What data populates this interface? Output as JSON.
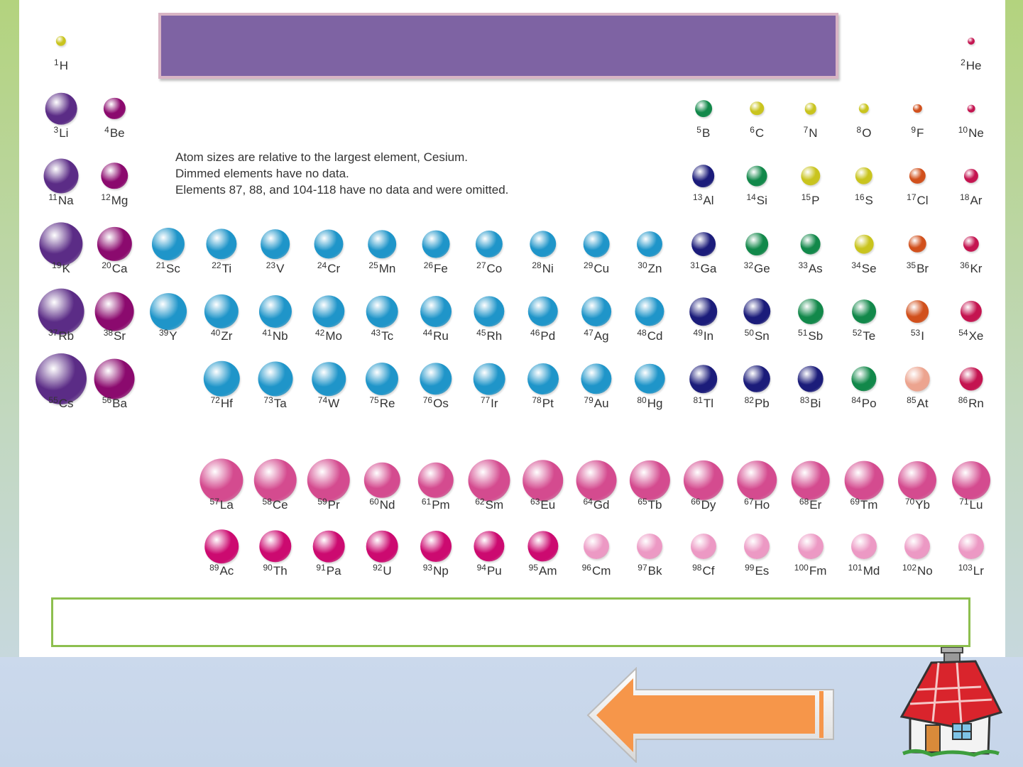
{
  "title": "",
  "answer": "",
  "notes": [
    "Atom sizes are relative to the largest element, Cesium.",
    "Dimmed elements have no data.",
    "Elements 87, 88, and 104-118 have no data and were omitted."
  ],
  "colors": {
    "alkali": "#5b2c86",
    "alkaline": "#8b0a6e",
    "transition": "#1f95c9",
    "poor": "#1b1c7a",
    "metalloid": "#12884a",
    "nonmetal": "#c9c41e",
    "halogen": "#d1501c",
    "noble": "#c41450",
    "astatine": "#eca48f",
    "lanthanide": "#d44b8f",
    "actinide": "#cc0a70",
    "dimmed": "#ec99c4",
    "title_box": "#7e63a3",
    "answer_border": "#8dbf4f",
    "arrow": "#f6964a"
  },
  "elements": [
    {
      "n": "1",
      "s": "H",
      "col": 1,
      "row": 1,
      "c": "nonmetal",
      "r": 0.2
    },
    {
      "n": "2",
      "s": "He",
      "col": 18,
      "row": 1,
      "c": "noble",
      "r": 0.13
    },
    {
      "n": "3",
      "s": "Li",
      "col": 1,
      "row": 2,
      "c": "alkali",
      "r": 0.62
    },
    {
      "n": "4",
      "s": "Be",
      "col": 2,
      "row": 2,
      "c": "alkaline",
      "r": 0.42
    },
    {
      "n": "5",
      "s": "B",
      "col": 13,
      "row": 2,
      "c": "metalloid",
      "r": 0.33
    },
    {
      "n": "6",
      "s": "C",
      "col": 14,
      "row": 2,
      "c": "nonmetal",
      "r": 0.27
    },
    {
      "n": "7",
      "s": "N",
      "col": 15,
      "row": 2,
      "c": "nonmetal",
      "r": 0.23
    },
    {
      "n": "8",
      "s": "O",
      "col": 16,
      "row": 2,
      "c": "nonmetal",
      "r": 0.2
    },
    {
      "n": "9",
      "s": "F",
      "col": 17,
      "row": 2,
      "c": "halogen",
      "r": 0.17
    },
    {
      "n": "10",
      "s": "Ne",
      "col": 18,
      "row": 2,
      "c": "noble",
      "r": 0.15
    },
    {
      "n": "11",
      "s": "Na",
      "col": 1,
      "row": 3,
      "c": "alkali",
      "r": 0.68
    },
    {
      "n": "12",
      "s": "Mg",
      "col": 2,
      "row": 3,
      "c": "alkaline",
      "r": 0.52
    },
    {
      "n": "13",
      "s": "Al",
      "col": 13,
      "row": 3,
      "c": "poor",
      "r": 0.44
    },
    {
      "n": "14",
      "s": "Si",
      "col": 14,
      "row": 3,
      "c": "metalloid",
      "r": 0.4
    },
    {
      "n": "15",
      "s": "P",
      "col": 15,
      "row": 3,
      "c": "nonmetal",
      "r": 0.38
    },
    {
      "n": "16",
      "s": "S",
      "col": 16,
      "row": 3,
      "c": "nonmetal",
      "r": 0.34
    },
    {
      "n": "17",
      "s": "Cl",
      "col": 17,
      "row": 3,
      "c": "halogen",
      "r": 0.31
    },
    {
      "n": "18",
      "s": "Ar",
      "col": 18,
      "row": 3,
      "c": "noble",
      "r": 0.28
    },
    {
      "n": "19",
      "s": "K",
      "col": 1,
      "row": 4,
      "c": "alkali",
      "r": 0.85
    },
    {
      "n": "20",
      "s": "Ca",
      "col": 2,
      "row": 4,
      "c": "alkaline",
      "r": 0.67
    },
    {
      "n": "21",
      "s": "Sc",
      "col": 3,
      "row": 4,
      "c": "transition",
      "r": 0.64
    },
    {
      "n": "22",
      "s": "Ti",
      "col": 4,
      "row": 4,
      "c": "transition",
      "r": 0.6
    },
    {
      "n": "23",
      "s": "V",
      "col": 5,
      "row": 4,
      "c": "transition",
      "r": 0.58
    },
    {
      "n": "24",
      "s": "Cr",
      "col": 6,
      "row": 4,
      "c": "transition",
      "r": 0.57
    },
    {
      "n": "25",
      "s": "Mn",
      "col": 7,
      "row": 4,
      "c": "transition",
      "r": 0.55
    },
    {
      "n": "26",
      "s": "Fe",
      "col": 8,
      "row": 4,
      "c": "transition",
      "r": 0.54
    },
    {
      "n": "27",
      "s": "Co",
      "col": 9,
      "row": 4,
      "c": "transition",
      "r": 0.53
    },
    {
      "n": "28",
      "s": "Ni",
      "col": 10,
      "row": 4,
      "c": "transition",
      "r": 0.52
    },
    {
      "n": "29",
      "s": "Cu",
      "col": 11,
      "row": 4,
      "c": "transition",
      "r": 0.51
    },
    {
      "n": "30",
      "s": "Zn",
      "col": 12,
      "row": 4,
      "c": "transition",
      "r": 0.5
    },
    {
      "n": "31",
      "s": "Ga",
      "col": 13,
      "row": 4,
      "c": "poor",
      "r": 0.47
    },
    {
      "n": "32",
      "s": "Ge",
      "col": 14,
      "row": 4,
      "c": "metalloid",
      "r": 0.44
    },
    {
      "n": "33",
      "s": "As",
      "col": 15,
      "row": 4,
      "c": "metalloid",
      "r": 0.4
    },
    {
      "n": "34",
      "s": "Se",
      "col": 16,
      "row": 4,
      "c": "nonmetal",
      "r": 0.37
    },
    {
      "n": "35",
      "s": "Br",
      "col": 17,
      "row": 4,
      "c": "halogen",
      "r": 0.34
    },
    {
      "n": "36",
      "s": "Kr",
      "col": 18,
      "row": 4,
      "c": "noble",
      "r": 0.31
    },
    {
      "n": "37",
      "s": "Rb",
      "col": 1,
      "row": 5,
      "c": "alkali",
      "r": 0.9
    },
    {
      "n": "38",
      "s": "Sr",
      "col": 2,
      "row": 5,
      "c": "alkaline",
      "r": 0.76
    },
    {
      "n": "39",
      "s": "Y",
      "col": 3,
      "row": 5,
      "c": "transition",
      "r": 0.72
    },
    {
      "n": "40",
      "s": "Zr",
      "col": 4,
      "row": 5,
      "c": "transition",
      "r": 0.67
    },
    {
      "n": "41",
      "s": "Nb",
      "col": 5,
      "row": 5,
      "c": "transition",
      "r": 0.64
    },
    {
      "n": "42",
      "s": "Mo",
      "col": 6,
      "row": 5,
      "c": "transition",
      "r": 0.63
    },
    {
      "n": "43",
      "s": "Tc",
      "col": 7,
      "row": 5,
      "c": "transition",
      "r": 0.62
    },
    {
      "n": "44",
      "s": "Ru",
      "col": 8,
      "row": 5,
      "c": "transition",
      "r": 0.61
    },
    {
      "n": "45",
      "s": "Rh",
      "col": 9,
      "row": 5,
      "c": "transition",
      "r": 0.6
    },
    {
      "n": "46",
      "s": "Pd",
      "col": 10,
      "row": 5,
      "c": "transition",
      "r": 0.59
    },
    {
      "n": "47",
      "s": "Ag",
      "col": 11,
      "row": 5,
      "c": "transition",
      "r": 0.58
    },
    {
      "n": "48",
      "s": "Cd",
      "col": 12,
      "row": 5,
      "c": "transition",
      "r": 0.57
    },
    {
      "n": "49",
      "s": "In",
      "col": 13,
      "row": 5,
      "c": "poor",
      "r": 0.55
    },
    {
      "n": "50",
      "s": "Sn",
      "col": 14,
      "row": 5,
      "c": "poor",
      "r": 0.52
    },
    {
      "n": "51",
      "s": "Sb",
      "col": 15,
      "row": 5,
      "c": "metalloid",
      "r": 0.5
    },
    {
      "n": "52",
      "s": "Te",
      "col": 16,
      "row": 5,
      "c": "metalloid",
      "r": 0.47
    },
    {
      "n": "53",
      "s": "I",
      "col": 17,
      "row": 5,
      "c": "halogen",
      "r": 0.44
    },
    {
      "n": "54",
      "s": "Xe",
      "col": 18,
      "row": 5,
      "c": "noble",
      "r": 0.42
    },
    {
      "n": "55",
      "s": "Cs",
      "col": 1,
      "row": 6,
      "c": "alkali",
      "r": 1.0
    },
    {
      "n": "56",
      "s": "Ba",
      "col": 2,
      "row": 6,
      "c": "alkaline",
      "r": 0.79
    },
    {
      "n": "72",
      "s": "Hf",
      "col": 4,
      "row": 6,
      "c": "transition",
      "r": 0.7
    },
    {
      "n": "73",
      "s": "Ta",
      "col": 5,
      "row": 6,
      "c": "transition",
      "r": 0.68
    },
    {
      "n": "74",
      "s": "W",
      "col": 6,
      "row": 6,
      "c": "transition",
      "r": 0.66
    },
    {
      "n": "75",
      "s": "Re",
      "col": 7,
      "row": 6,
      "c": "transition",
      "r": 0.64
    },
    {
      "n": "76",
      "s": "Os",
      "col": 8,
      "row": 6,
      "c": "transition",
      "r": 0.63
    },
    {
      "n": "77",
      "s": "Ir",
      "col": 9,
      "row": 6,
      "c": "transition",
      "r": 0.62
    },
    {
      "n": "78",
      "s": "Pt",
      "col": 10,
      "row": 6,
      "c": "transition",
      "r": 0.61
    },
    {
      "n": "79",
      "s": "Au",
      "col": 11,
      "row": 6,
      "c": "transition",
      "r": 0.6
    },
    {
      "n": "80",
      "s": "Hg",
      "col": 12,
      "row": 6,
      "c": "transition",
      "r": 0.59
    },
    {
      "n": "81",
      "s": "Tl",
      "col": 13,
      "row": 6,
      "c": "poor",
      "r": 0.55
    },
    {
      "n": "82",
      "s": "Pb",
      "col": 14,
      "row": 6,
      "c": "poor",
      "r": 0.53
    },
    {
      "n": "83",
      "s": "Bi",
      "col": 15,
      "row": 6,
      "c": "poor",
      "r": 0.51
    },
    {
      "n": "84",
      "s": "Po",
      "col": 16,
      "row": 6,
      "c": "metalloid",
      "r": 0.49
    },
    {
      "n": "85",
      "s": "At",
      "col": 17,
      "row": 6,
      "c": "astatine",
      "r": 0.48
    },
    {
      "n": "86",
      "s": "Rn",
      "col": 18,
      "row": 6,
      "c": "noble",
      "r": 0.46
    },
    {
      "n": "57",
      "s": "La",
      "col": 4,
      "row": 8,
      "c": "lanthanide",
      "r": 0.85
    },
    {
      "n": "58",
      "s": "Ce",
      "col": 5,
      "row": 8,
      "c": "lanthanide",
      "r": 0.84
    },
    {
      "n": "59",
      "s": "Pr",
      "col": 6,
      "row": 8,
      "c": "lanthanide",
      "r": 0.84
    },
    {
      "n": "60",
      "s": "Nd",
      "col": 7,
      "row": 8,
      "c": "lanthanide",
      "r": 0.7
    },
    {
      "n": "61",
      "s": "Pm",
      "col": 8,
      "row": 8,
      "c": "lanthanide",
      "r": 0.7
    },
    {
      "n": "62",
      "s": "Sm",
      "col": 9,
      "row": 8,
      "c": "lanthanide",
      "r": 0.82
    },
    {
      "n": "63",
      "s": "Eu",
      "col": 10,
      "row": 8,
      "c": "lanthanide",
      "r": 0.8
    },
    {
      "n": "64",
      "s": "Gd",
      "col": 11,
      "row": 8,
      "c": "lanthanide",
      "r": 0.79
    },
    {
      "n": "65",
      "s": "Tb",
      "col": 12,
      "row": 8,
      "c": "lanthanide",
      "r": 0.78
    },
    {
      "n": "66",
      "s": "Dy",
      "col": 13,
      "row": 8,
      "c": "lanthanide",
      "r": 0.78
    },
    {
      "n": "67",
      "s": "Ho",
      "col": 14,
      "row": 8,
      "c": "lanthanide",
      "r": 0.77
    },
    {
      "n": "68",
      "s": "Er",
      "col": 15,
      "row": 8,
      "c": "lanthanide",
      "r": 0.76
    },
    {
      "n": "69",
      "s": "Tm",
      "col": 16,
      "row": 8,
      "c": "lanthanide",
      "r": 0.76
    },
    {
      "n": "70",
      "s": "Yb",
      "col": 17,
      "row": 8,
      "c": "lanthanide",
      "r": 0.75
    },
    {
      "n": "71",
      "s": "Lu",
      "col": 18,
      "row": 8,
      "c": "lanthanide",
      "r": 0.75
    },
    {
      "n": "89",
      "s": "Ac",
      "col": 4,
      "row": 9,
      "c": "actinide",
      "r": 0.66
    },
    {
      "n": "90",
      "s": "Th",
      "col": 5,
      "row": 9,
      "c": "actinide",
      "r": 0.63
    },
    {
      "n": "91",
      "s": "Pa",
      "col": 6,
      "row": 9,
      "c": "actinide",
      "r": 0.62
    },
    {
      "n": "92",
      "s": "U",
      "col": 7,
      "row": 9,
      "c": "actinide",
      "r": 0.62
    },
    {
      "n": "93",
      "s": "Np",
      "col": 8,
      "row": 9,
      "c": "actinide",
      "r": 0.61
    },
    {
      "n": "94",
      "s": "Pu",
      "col": 9,
      "row": 9,
      "c": "actinide",
      "r": 0.6
    },
    {
      "n": "95",
      "s": "Am",
      "col": 10,
      "row": 9,
      "c": "actinide",
      "r": 0.6
    },
    {
      "n": "96",
      "s": "Cm",
      "col": 11,
      "row": 9,
      "c": "dimmed",
      "r": 0.5
    },
    {
      "n": "97",
      "s": "Bk",
      "col": 12,
      "row": 9,
      "c": "dimmed",
      "r": 0.5
    },
    {
      "n": "98",
      "s": "Cf",
      "col": 13,
      "row": 9,
      "c": "dimmed",
      "r": 0.5
    },
    {
      "n": "99",
      "s": "Es",
      "col": 14,
      "row": 9,
      "c": "dimmed",
      "r": 0.5
    },
    {
      "n": "100",
      "s": "Fm",
      "col": 15,
      "row": 9,
      "c": "dimmed",
      "r": 0.5
    },
    {
      "n": "101",
      "s": "Md",
      "col": 16,
      "row": 9,
      "c": "dimmed",
      "r": 0.5
    },
    {
      "n": "102",
      "s": "No",
      "col": 17,
      "row": 9,
      "c": "dimmed",
      "r": 0.5
    },
    {
      "n": "103",
      "s": "Lr",
      "col": 18,
      "row": 9,
      "c": "dimmed",
      "r": 0.5
    }
  ]
}
